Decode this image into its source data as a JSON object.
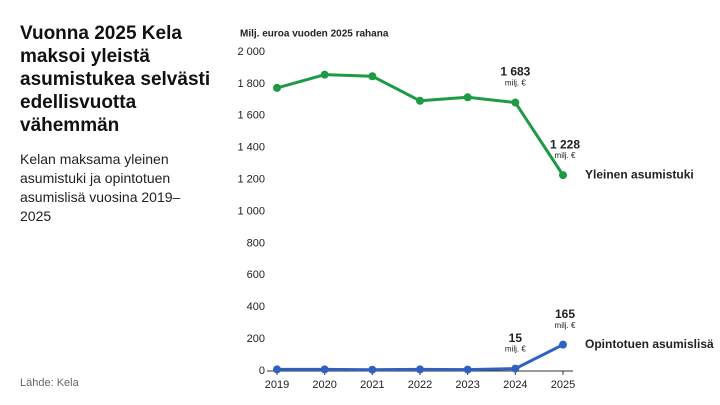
{
  "chart_data": {
    "type": "line",
    "title": "Vuonna 2025 Kela maksoi yleistä asumistukea selvästi edellisvuotta vähemmän",
    "subtitle": "Kelan maksama yleinen asumistuki ja opintotuen asumislisä vuosina 2019–2025",
    "source": "Lähde: Kela",
    "y_label": "Milj. euroa vuoden 2025 rahana",
    "value_unit": "milj. €",
    "categories": [
      "2019",
      "2020",
      "2021",
      "2022",
      "2023",
      "2024",
      "2025"
    ],
    "series": [
      {
        "name": "Yleinen asumistuki",
        "color": "#1e9a45",
        "values": [
          1775,
          1858,
          1848,
          1694,
          1716,
          1683,
          1228
        ],
        "value_labels": [
          null,
          null,
          null,
          null,
          null,
          "1 683",
          "1 228"
        ]
      },
      {
        "name": "Opintotuen asumislisä",
        "color": "#2f62c0",
        "values": [
          10,
          10,
          8,
          10,
          9,
          15,
          165
        ],
        "value_labels": [
          null,
          null,
          null,
          null,
          null,
          "15",
          "165"
        ]
      }
    ],
    "ylim": [
      0,
      2000
    ],
    "yticks": [
      0,
      200,
      400,
      600,
      800,
      {
        "value": 1000,
        "label": "1 000"
      },
      {
        "value": 1200,
        "label": "1 200"
      },
      {
        "value": 1400,
        "label": "1 400"
      },
      {
        "value": 1600,
        "label": "1 600"
      },
      {
        "value": 1800,
        "label": "1 800"
      },
      {
        "value": 2000,
        "label": "2 000"
      }
    ],
    "grid": false
  }
}
